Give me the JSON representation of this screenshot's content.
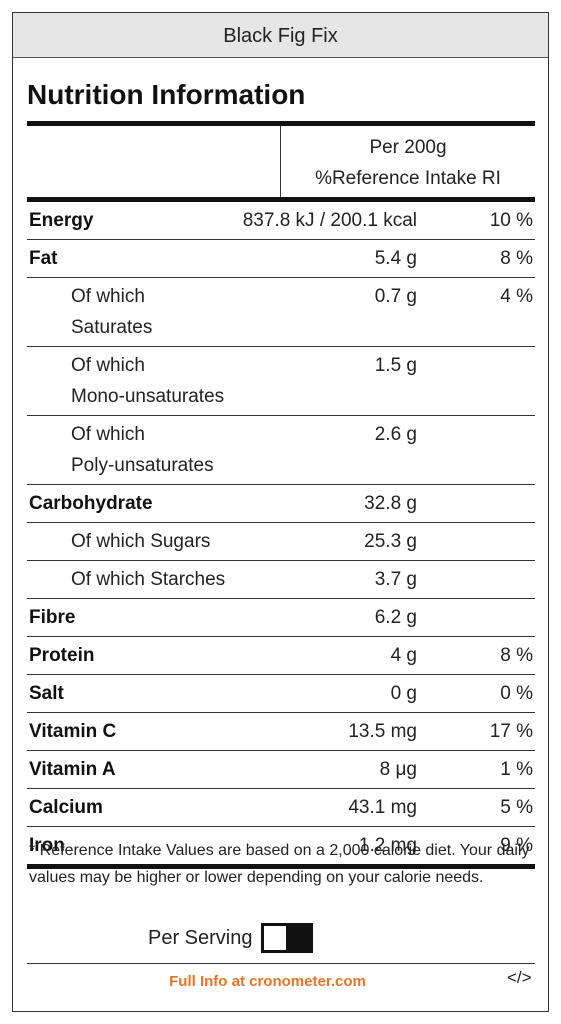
{
  "header": {
    "title": "Black Fig Fix"
  },
  "heading": "Nutrition Information",
  "table": {
    "columns": [
      "Per 200g",
      "%Reference Intake RI"
    ],
    "rows": [
      {
        "label": "Energy",
        "amount": "837.8 kJ / 200.1 kcal",
        "ri": "10 %"
      },
      {
        "label": "Fat",
        "amount": "5.4 g",
        "ri": "8 %",
        "sub_rows": [
          {
            "label": "Of which Saturates",
            "amount": "0.7 g",
            "ri": "4 %"
          },
          {
            "label": [
              "Of which",
              "Mono-unsaturates"
            ],
            "amount": "1.5 g"
          },
          {
            "label": [
              "Of which",
              "Poly-unsaturates"
            ],
            "amount": "2.6 g"
          }
        ]
      },
      {
        "label": "Carbohydrate",
        "amount": "32.8 g",
        "sub_rows": [
          {
            "label": "Of which Sugars",
            "amount": "25.3 g"
          },
          {
            "label": "Of which Starches",
            "amount": "3.7 g"
          }
        ]
      },
      {
        "label": "Fibre",
        "amount": "6.2 g"
      },
      {
        "label": "Protein",
        "amount": "4 g",
        "ri": "8 %"
      },
      {
        "label": "Salt",
        "amount": "0 g",
        "ri": "0 %"
      },
      {
        "label": "Vitamin C",
        "amount": "13.5 mg",
        "ri": "17 %"
      },
      {
        "label": "Vitamin A",
        "amount": "8 μg",
        "ri": "1 %"
      },
      {
        "label": "Calcium",
        "amount": "43.1 mg",
        "ri": "5 %"
      },
      {
        "label": "Iron",
        "amount": "1.2 mg",
        "ri": "9 %"
      }
    ]
  },
  "footnote": "* Reference Intake Values are based on a 2,000 calorie diet. Your daily values may be higher or lower depending on your calorie needs.",
  "toggle_label": "Per Serving",
  "footer": {
    "link": "Full Info at cronometer.com",
    "embed": "</>"
  }
}
